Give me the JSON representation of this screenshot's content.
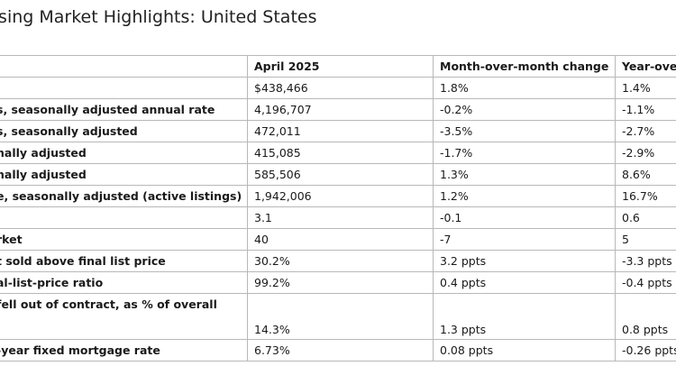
{
  "title": "using Market Highlights: United States",
  "table": {
    "headers": [
      "",
      "April 2025",
      "Month-over-month change",
      "Year-over-y"
    ],
    "rows": [
      {
        "metric": "",
        "april": "$438,466",
        "mom": "1.8%",
        "yoy": "1.4%"
      },
      {
        "metric": "s, seasonally adjusted annual rate",
        "april": "4,196,707",
        "mom": "-0.2%",
        "yoy": "-1.1%"
      },
      {
        "metric": "s, seasonally adjusted",
        "april": "472,011",
        "mom": "-3.5%",
        "yoy": "-2.7%"
      },
      {
        "metric": "nally adjusted",
        "april": "415,085",
        "mom": "-1.7%",
        "yoy": "-2.9%"
      },
      {
        "metric": "nally adjusted",
        "april": "585,506",
        "mom": "1.3%",
        "yoy": "8.6%"
      },
      {
        "metric": "e, seasonally adjusted (active listings)",
        "april": "1,942,006",
        "mom": "1.2%",
        "yoy": "16.7%"
      },
      {
        "metric": "",
        "april": "3.1",
        "mom": "-0.1",
        "yoy": "0.6"
      },
      {
        "metric": "rket",
        "april": "40",
        "mom": "-7",
        "yoy": "5"
      },
      {
        "metric": "t sold above final list price",
        "april": "30.2%",
        "mom": "3.2 ppts",
        "yoy": "-3.3 ppts"
      },
      {
        "metric": "al-list-price ratio",
        "april": "99.2%",
        "mom": "0.4 ppts",
        "yoy": "-0.4 ppts"
      },
      {
        "metric": "fell out of contract, as % of overall",
        "april": "14.3%",
        "mom": "1.3 ppts",
        "yoy": "0.8 ppts"
      },
      {
        "metric": "-year fixed mortgage rate",
        "april": "6.73%",
        "mom": "0.08 ppts",
        "yoy": "-0.26 ppts"
      }
    ]
  }
}
